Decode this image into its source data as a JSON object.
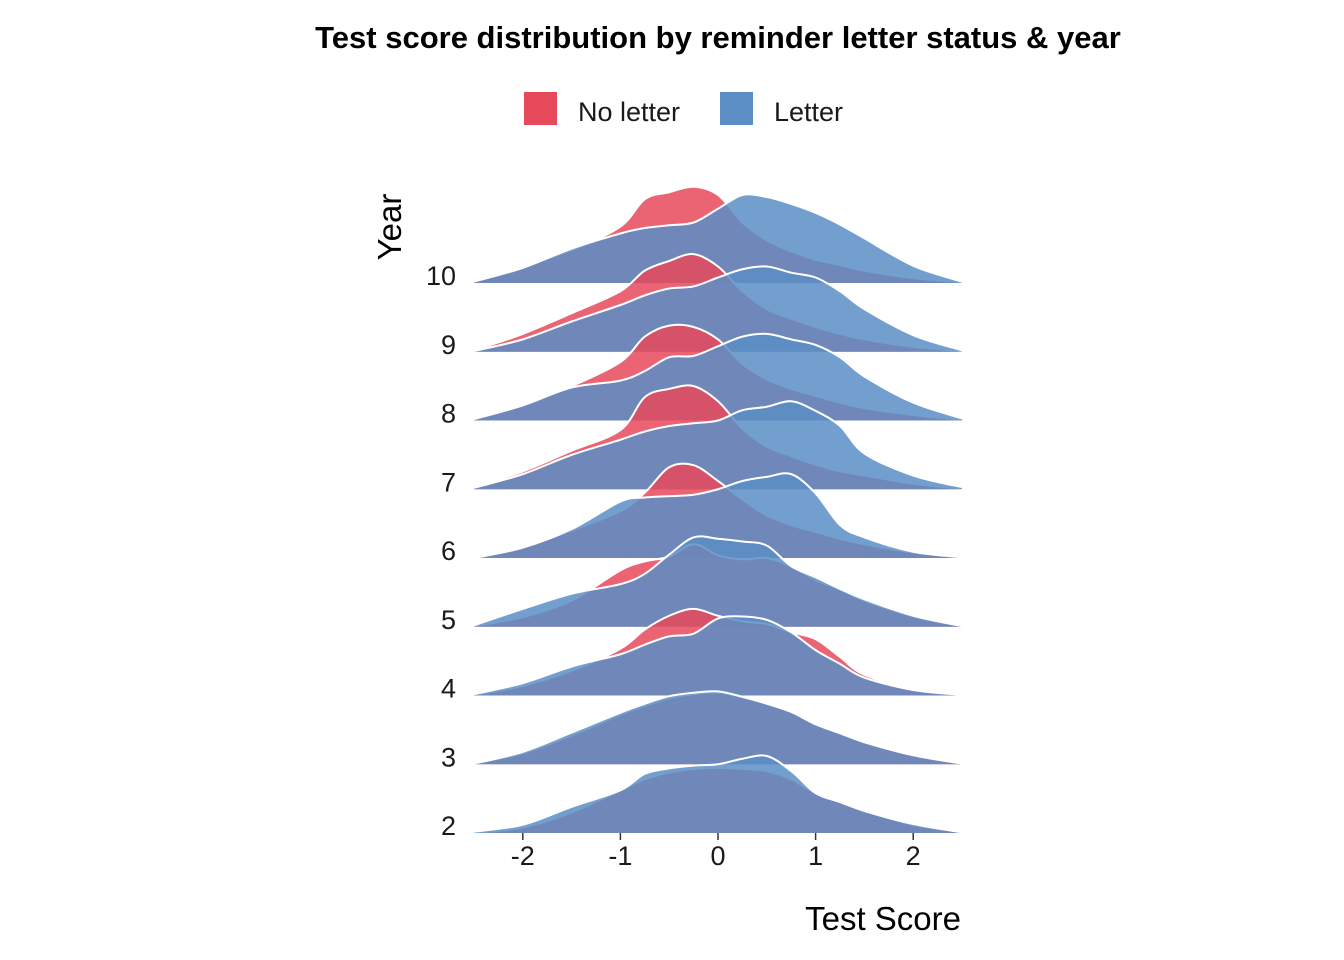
{
  "chart_data": {
    "type": "ridgeline",
    "title": "Test score distribution by reminder letter status  & year",
    "xlabel": "Test Score",
    "ylabel": "Year",
    "xlim": [
      -2.5,
      2.5
    ],
    "x_ticks": [
      -2,
      -1,
      0,
      1,
      2
    ],
    "x_tick_labels": [
      "-2",
      "-1",
      "0",
      "1",
      "2"
    ],
    "categories": [
      "2",
      "3",
      "4",
      "5",
      "6",
      "7",
      "8",
      "9",
      "10"
    ],
    "legend": {
      "position": "top",
      "entries": [
        "No letter",
        "Letter"
      ]
    },
    "grid": false,
    "x": [
      -2.5,
      -2.0,
      -1.5,
      -1.0,
      -0.75,
      -0.5,
      -0.25,
      0.0,
      0.25,
      0.5,
      0.75,
      1.0,
      1.25,
      1.5,
      2.0,
      2.5
    ],
    "series": [
      {
        "name": "No letter",
        "color": "#E8495A",
        "densities": {
          "2": [
            0.0,
            0.08,
            0.3,
            0.62,
            0.78,
            0.88,
            0.93,
            0.95,
            0.93,
            0.9,
            0.78,
            0.58,
            0.45,
            0.32,
            0.12,
            0.01
          ],
          "3": [
            0.01,
            0.16,
            0.42,
            0.72,
            0.85,
            0.96,
            1.02,
            1.04,
            0.98,
            0.9,
            0.78,
            0.6,
            0.46,
            0.32,
            0.13,
            0.01
          ],
          "4": [
            0.01,
            0.14,
            0.36,
            0.68,
            0.96,
            1.16,
            1.26,
            1.16,
            1.08,
            1.04,
            0.92,
            0.82,
            0.56,
            0.3,
            0.09,
            0.01
          ],
          "5": [
            0.01,
            0.14,
            0.38,
            0.82,
            0.95,
            1.02,
            1.2,
            1.04,
            0.98,
            1.0,
            0.88,
            0.68,
            0.54,
            0.38,
            0.15,
            0.01
          ],
          "6": [
            0.0,
            0.16,
            0.4,
            0.68,
            0.95,
            1.32,
            1.35,
            1.12,
            0.85,
            0.62,
            0.48,
            0.38,
            0.28,
            0.2,
            0.08,
            0.01
          ],
          "7": [
            0.03,
            0.26,
            0.56,
            0.86,
            1.34,
            1.46,
            1.5,
            1.28,
            0.88,
            0.62,
            0.48,
            0.36,
            0.26,
            0.2,
            0.08,
            0.01
          ],
          "8": [
            0.03,
            0.24,
            0.5,
            0.85,
            1.22,
            1.38,
            1.36,
            1.18,
            0.82,
            0.6,
            0.46,
            0.36,
            0.26,
            0.18,
            0.08,
            0.01
          ],
          "9": [
            0.02,
            0.26,
            0.56,
            0.88,
            1.18,
            1.32,
            1.42,
            1.24,
            0.88,
            0.62,
            0.48,
            0.36,
            0.26,
            0.18,
            0.07,
            0.01
          ],
          "10": [
            0.02,
            0.24,
            0.48,
            0.82,
            1.22,
            1.32,
            1.4,
            1.28,
            0.88,
            0.62,
            0.46,
            0.34,
            0.26,
            0.18,
            0.07,
            0.01
          ]
        }
      },
      {
        "name": "Letter",
        "color": "#5B8EC5",
        "densities": {
          "2": [
            0.02,
            0.12,
            0.38,
            0.62,
            0.86,
            0.94,
            0.98,
            1.0,
            1.08,
            1.12,
            0.9,
            0.58,
            0.45,
            0.32,
            0.13,
            0.01
          ],
          "3": [
            0.01,
            0.18,
            0.46,
            0.75,
            0.88,
            0.99,
            1.04,
            1.06,
            0.98,
            0.88,
            0.76,
            0.58,
            0.45,
            0.32,
            0.13,
            0.01
          ],
          "4": [
            0.02,
            0.18,
            0.42,
            0.6,
            0.74,
            0.86,
            0.9,
            1.12,
            1.15,
            1.1,
            0.92,
            0.66,
            0.46,
            0.26,
            0.08,
            0.01
          ],
          "5": [
            0.02,
            0.26,
            0.48,
            0.62,
            0.77,
            1.05,
            1.3,
            1.28,
            1.24,
            1.18,
            0.88,
            0.72,
            0.55,
            0.4,
            0.16,
            0.01
          ],
          "6": [
            0.0,
            0.15,
            0.42,
            0.82,
            0.88,
            0.9,
            0.92,
            1.0,
            1.12,
            1.18,
            1.22,
            0.94,
            0.48,
            0.3,
            0.09,
            0.01
          ],
          "7": [
            0.02,
            0.22,
            0.5,
            0.72,
            0.84,
            0.92,
            0.96,
            1.0,
            1.15,
            1.2,
            1.28,
            1.14,
            0.92,
            0.52,
            0.2,
            0.03
          ],
          "8": [
            0.02,
            0.22,
            0.48,
            0.58,
            0.72,
            0.92,
            0.94,
            1.08,
            1.22,
            1.26,
            1.18,
            1.1,
            0.92,
            0.64,
            0.26,
            0.03
          ],
          "9": [
            0.01,
            0.18,
            0.44,
            0.68,
            0.82,
            0.92,
            0.95,
            1.08,
            1.2,
            1.24,
            1.15,
            1.08,
            0.88,
            0.62,
            0.24,
            0.02
          ],
          "10": [
            0.02,
            0.22,
            0.5,
            0.72,
            0.8,
            0.84,
            0.88,
            1.08,
            1.28,
            1.25,
            1.15,
            1.02,
            0.85,
            0.65,
            0.25,
            0.02
          ]
        }
      }
    ]
  }
}
